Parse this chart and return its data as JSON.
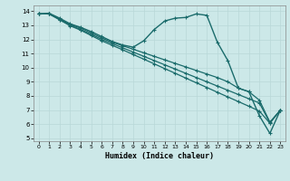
{
  "xlabel": "Humidex (Indice chaleur)",
  "ylabel": "",
  "xlim": [
    -0.5,
    23.5
  ],
  "ylim": [
    4.8,
    14.4
  ],
  "xticks": [
    0,
    1,
    2,
    3,
    4,
    5,
    6,
    7,
    8,
    9,
    10,
    11,
    12,
    13,
    14,
    15,
    16,
    17,
    18,
    19,
    20,
    21,
    22,
    23
  ],
  "yticks": [
    5,
    6,
    7,
    8,
    9,
    10,
    11,
    12,
    13,
    14
  ],
  "bg_color": "#cce8e8",
  "line_color": "#1a6b6b",
  "grid_color": "#b8d8d8",
  "series": [
    {
      "x": [
        0,
        1,
        2,
        3,
        4,
        5,
        6,
        7,
        8,
        9,
        10,
        11,
        12,
        13,
        14,
        15,
        16,
        17,
        18,
        19,
        20,
        21,
        22,
        23
      ],
      "y": [
        13.8,
        13.85,
        13.5,
        13.1,
        12.85,
        12.55,
        12.2,
        11.85,
        11.6,
        11.45,
        11.9,
        12.7,
        13.3,
        13.5,
        13.55,
        13.8,
        13.7,
        11.8,
        10.5,
        8.55,
        8.3,
        6.6,
        5.35,
        7.0
      ]
    },
    {
      "x": [
        0,
        1,
        2,
        3,
        4,
        5,
        6,
        7,
        8,
        9,
        10,
        11,
        12,
        13,
        14,
        15,
        16,
        17,
        18,
        19,
        20,
        21,
        22,
        23
      ],
      "y": [
        13.8,
        13.8,
        13.45,
        13.05,
        12.8,
        12.45,
        12.1,
        11.8,
        11.55,
        11.3,
        11.05,
        10.8,
        10.55,
        10.3,
        10.05,
        9.8,
        9.55,
        9.3,
        9.0,
        8.55,
        8.3,
        7.7,
        6.15,
        7.0
      ]
    },
    {
      "x": [
        0,
        1,
        2,
        3,
        4,
        5,
        6,
        7,
        8,
        9,
        10,
        11,
        12,
        13,
        14,
        15,
        16,
        17,
        18,
        19,
        20,
        21,
        22,
        23
      ],
      "y": [
        13.8,
        13.8,
        13.4,
        13.0,
        12.7,
        12.35,
        12.0,
        11.7,
        11.4,
        11.1,
        10.8,
        10.5,
        10.2,
        9.9,
        9.6,
        9.3,
        9.0,
        8.7,
        8.4,
        8.1,
        7.8,
        7.5,
        6.1,
        7.0
      ]
    },
    {
      "x": [
        0,
        1,
        2,
        3,
        4,
        5,
        6,
        7,
        8,
        9,
        10,
        11,
        12,
        13,
        14,
        15,
        16,
        17,
        18,
        19,
        20,
        21,
        22,
        23
      ],
      "y": [
        13.8,
        13.8,
        13.38,
        12.96,
        12.65,
        12.27,
        11.9,
        11.58,
        11.26,
        10.93,
        10.6,
        10.27,
        9.93,
        9.6,
        9.26,
        8.93,
        8.6,
        8.26,
        7.93,
        7.6,
        7.27,
        6.93,
        6.07,
        7.0
      ]
    }
  ]
}
